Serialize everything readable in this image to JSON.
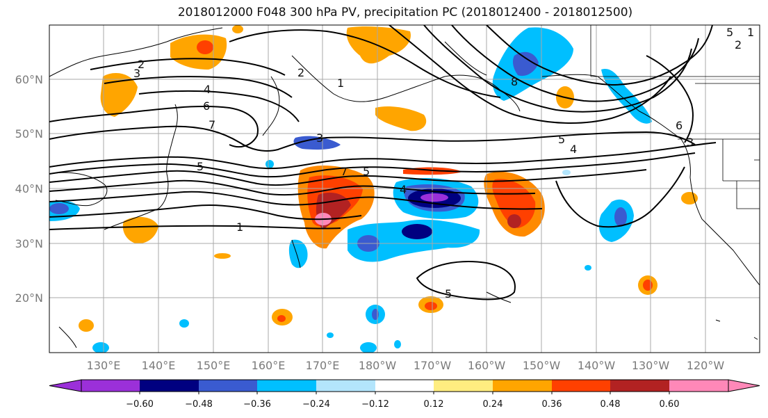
{
  "title": "2018012000 F048 300 hPa PV, precipitation PC (2018012400 - 2018012500)",
  "lat_labels": [
    "60°N",
    "50°N",
    "40°N",
    "30°N",
    "20°N"
  ],
  "lon_labels": [
    "130°E",
    "140°E",
    "150°E",
    "160°E",
    "170°E",
    "180°W",
    "170°W",
    "160°W",
    "150°W",
    "140°W",
    "130°W",
    "120°W"
  ],
  "contour_labels": [
    "2",
    "3",
    "4",
    "6",
    "7",
    "5",
    "1",
    "1",
    "5",
    "4",
    "5",
    "6",
    "8",
    "2",
    "3",
    "4",
    "5",
    "1",
    "5",
    "2",
    "7",
    "3"
  ],
  "colorbar": {
    "ticks": [
      "−0.60",
      "−0.48",
      "−0.36",
      "−0.24",
      "−0.12",
      "0.12",
      "0.24",
      "0.36",
      "0.48",
      "0.60"
    ],
    "colors": [
      "#9b30d9",
      "#000080",
      "#3a5bd0",
      "#00bfff",
      "#b3e5fc",
      "#ffffff",
      "#ffed80",
      "#ffa500",
      "#ff4000",
      "#b22222",
      "#ff88b8",
      "#ff88b8"
    ]
  }
}
